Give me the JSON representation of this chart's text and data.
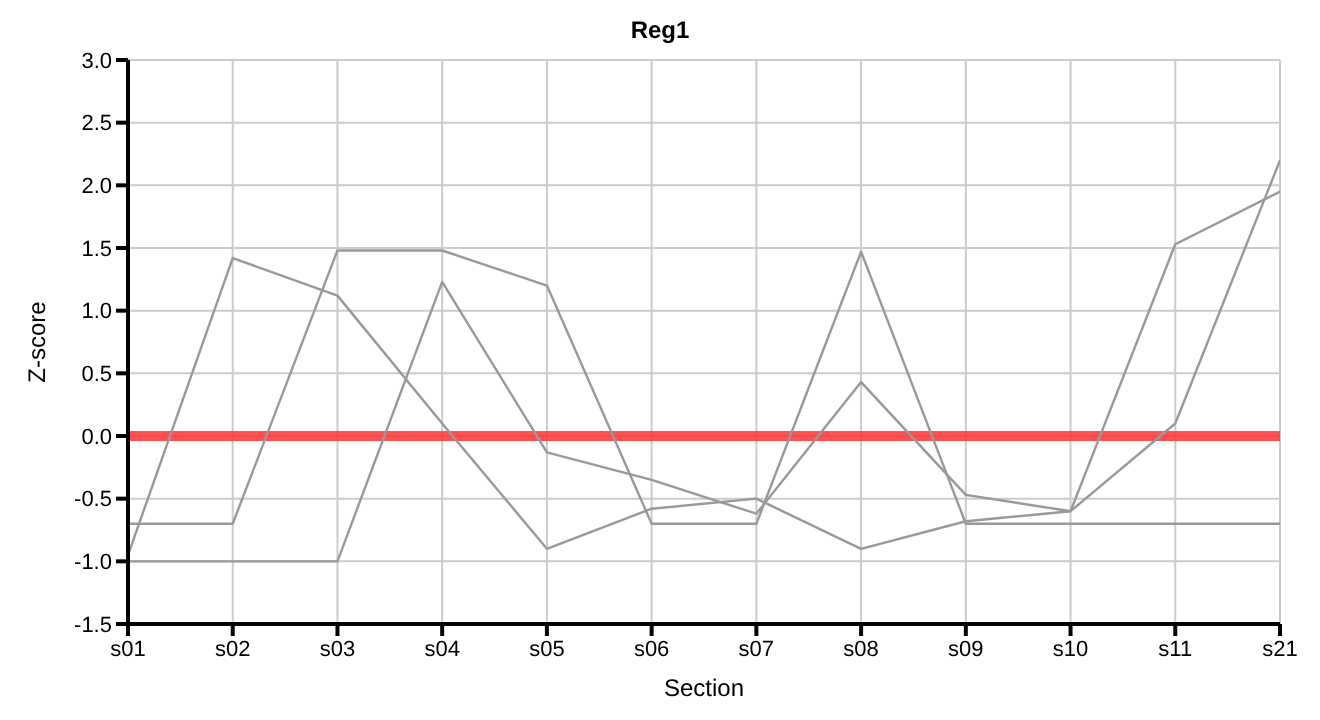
{
  "chart_data": {
    "type": "line",
    "title": "Reg1",
    "xlabel": "Section",
    "ylabel": "Z-score",
    "categories": [
      "s01",
      "s02",
      "s03",
      "s04",
      "s05",
      "s06",
      "s07",
      "s08",
      "s09",
      "s10",
      "s11",
      "s21"
    ],
    "series": [
      {
        "color": "#999999",
        "values": [
          -0.95,
          1.42,
          1.12,
          0.1,
          -0.9,
          -0.58,
          -0.5,
          -0.9,
          -0.68,
          -0.6,
          1.53,
          1.95
        ]
      },
      {
        "color": "#999999",
        "values": [
          -0.7,
          -0.7,
          1.48,
          1.48,
          1.2,
          -0.7,
          -0.7,
          1.47,
          -0.7,
          -0.7,
          -0.7,
          -0.7
        ]
      },
      {
        "color": "#999999",
        "values": [
          -1.0,
          -1.0,
          -1.0,
          1.23,
          -0.13,
          -0.35,
          -0.62,
          0.43,
          -0.47,
          -0.6,
          0.1,
          2.2
        ]
      }
    ],
    "ylim": [
      -1.5,
      3.0
    ],
    "yticks": [
      {
        "value": -1.5,
        "label": "-1.5"
      },
      {
        "value": -1,
        "label": "-1.0"
      },
      {
        "value": -0.5,
        "label": "-0.5"
      },
      {
        "value": 0,
        "label": "0.0"
      },
      {
        "value": 0.5,
        "label": "0.5"
      },
      {
        "value": 1,
        "label": "1.0"
      },
      {
        "value": 1.5,
        "label": "1.5"
      },
      {
        "value": 2,
        "label": "2.0"
      },
      {
        "value": 2.5,
        "label": "2.5"
      },
      {
        "value": 3,
        "label": "3.0"
      }
    ],
    "ref_lines": [
      {
        "axis": "y",
        "value": 0,
        "color": "#ff3333"
      }
    ],
    "grid": true,
    "legend": false,
    "marker": "none",
    "line_style": "solid"
  }
}
